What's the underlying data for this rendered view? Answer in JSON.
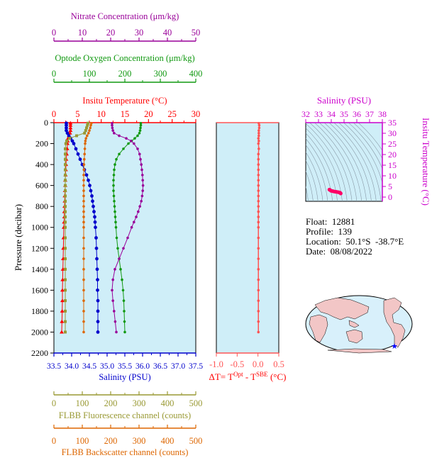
{
  "colors": {
    "nitrate": "#990099",
    "oxygen": "#119911",
    "temperature": "#ff0000",
    "salinity": "#0000cc",
    "fluorescence": "#999933",
    "backscatter": "#dd6600",
    "dt": "#ff5555",
    "ts_axis": "#cc00cc",
    "ts_points": "#ff0066",
    "panel_bg": "#cfeef8"
  },
  "info": {
    "float_label": "Float:",
    "float_value": "12881",
    "profile_label": "Profile:",
    "profile_value": "139",
    "location_label": "Location:",
    "location_value": "50.1°S  -38.7°E",
    "date_label": "Date:",
    "date_value": "08/08/2022"
  },
  "chart_data": [
    {
      "type": "line",
      "panel": "main-profile",
      "ylabel": "Pressure (decibar)",
      "ylim": [
        2200,
        0
      ],
      "yticks": [
        0,
        200,
        400,
        600,
        800,
        1000,
        1200,
        1400,
        1600,
        1800,
        2000,
        2200
      ],
      "pressure": [
        5,
        25,
        50,
        75,
        100,
        125,
        150,
        175,
        200,
        250,
        300,
        350,
        400,
        450,
        500,
        550,
        600,
        650,
        700,
        750,
        800,
        850,
        900,
        950,
        1000,
        1100,
        1200,
        1300,
        1400,
        1500,
        1600,
        1700,
        1800,
        1900,
        2000
      ],
      "axes": [
        {
          "name": "Nitrate Concentration (μm/kg)",
          "key": "nitrate",
          "xlim": [
            0,
            50
          ],
          "ticks": [
            "0",
            "10",
            "20",
            "30",
            "40",
            "50"
          ]
        },
        {
          "name": "Optode Oxygen Concentration (μm/kg)",
          "key": "oxygen",
          "xlim": [
            0,
            400
          ],
          "ticks": [
            "0",
            "100",
            "200",
            "300",
            "400"
          ]
        },
        {
          "name": "Insitu Temperature (°C)",
          "key": "temperature",
          "xlim": [
            0,
            30
          ],
          "ticks": [
            "0",
            "5",
            "10",
            "15",
            "20",
            "25",
            "30"
          ]
        },
        {
          "name": "Salinity (PSU)",
          "key": "salinity",
          "xlim": [
            33.5,
            37.5
          ],
          "ticks": [
            "33.5",
            "34.0",
            "34.5",
            "35.0",
            "35.5",
            "36.0",
            "36.5",
            "37.0",
            "37.5"
          ]
        },
        {
          "name": "FLBB Fluorescence channel (counts)",
          "key": "fluorescence",
          "xlim": [
            0,
            500
          ],
          "ticks": [
            "0",
            "100",
            "200",
            "300",
            "400",
            "500"
          ]
        },
        {
          "name": "FLBB Backscatter channel (counts)",
          "key": "backscatter",
          "xlim": [
            0,
            500
          ],
          "ticks": [
            "0",
            "100",
            "200",
            "300",
            "400",
            "500"
          ]
        }
      ],
      "series": [
        {
          "key": "temperature",
          "values": [
            3.5,
            3.5,
            3.5,
            3.5,
            3.4,
            3.2,
            3.0,
            2.9,
            2.85,
            2.8,
            2.7,
            2.6,
            2.55,
            2.5,
            2.45,
            2.4,
            2.4,
            2.35,
            2.3,
            2.3,
            2.25,
            2.2,
            2.2,
            2.15,
            2.1,
            2.05,
            2.0,
            1.95,
            1.9,
            1.85,
            1.8,
            1.8,
            1.75,
            1.7,
            1.65
          ]
        },
        {
          "key": "salinity",
          "values": [
            33.85,
            33.85,
            33.85,
            33.85,
            33.88,
            33.92,
            33.97,
            34.02,
            34.06,
            34.12,
            34.18,
            34.24,
            34.3,
            34.36,
            34.42,
            34.47,
            34.51,
            34.54,
            34.57,
            34.59,
            34.61,
            34.63,
            34.65,
            34.66,
            34.67,
            34.69,
            34.7,
            34.71,
            34.72,
            34.73,
            34.73,
            34.74,
            34.74,
            34.74,
            34.74
          ]
        },
        {
          "key": "oxygen",
          "values": [
            245,
            245,
            244,
            243,
            241,
            236,
            228,
            219,
            210,
            196,
            184,
            176,
            172,
            170,
            169,
            168,
            168,
            168,
            169,
            170,
            171,
            172,
            173,
            174,
            175,
            177,
            180,
            184,
            188,
            192,
            195,
            197,
            198,
            199,
            200
          ]
        },
        {
          "key": "nitrate",
          "values": [
            20.5,
            20.5,
            20.6,
            20.8,
            21.2,
            23.0,
            25.5,
            27.2,
            28.2,
            29.5,
            30.2,
            30.5,
            30.8,
            31.0,
            31.2,
            31.3,
            31.4,
            31.3,
            31.1,
            30.8,
            30.3,
            29.7,
            29.0,
            28.2,
            27.4,
            26.0,
            24.5,
            23.0,
            21.5,
            20.8,
            20.5,
            20.8,
            21.2,
            21.6,
            22.0
          ]
        },
        {
          "key": "fluorescence",
          "values": [
            120,
            118,
            115,
            112,
            108,
            80,
            55,
            45,
            42,
            40,
            40,
            40,
            40,
            40,
            40,
            40,
            40,
            40,
            40,
            40,
            40,
            40,
            40,
            40,
            40,
            40,
            40,
            40,
            40,
            40,
            40,
            40,
            40,
            40,
            40
          ]
        },
        {
          "key": "backscatter",
          "values": [
            132,
            130,
            128,
            125,
            122,
            117,
            113,
            111,
            110,
            109,
            108,
            107,
            106,
            106,
            105,
            105,
            105,
            105,
            105,
            105,
            105,
            105,
            105,
            105,
            105,
            105,
            105,
            105,
            105,
            105,
            105,
            105,
            105,
            105,
            105
          ]
        }
      ]
    },
    {
      "type": "line",
      "panel": "delta-t",
      "xlabel": "ΔT= T",
      "xlabel_sup1": "Opt",
      "xlabel_mid": " - T",
      "xlabel_sup2": "SBE",
      "xlabel_unit": " (°C)",
      "xlim": [
        -1.0,
        0.5
      ],
      "ticks": [
        "-1.0",
        "-0.5",
        "0.0",
        "0.5"
      ],
      "ylim": [
        2200,
        0
      ],
      "pressure": [
        5,
        25,
        50,
        75,
        100,
        125,
        150,
        175,
        200,
        250,
        300,
        350,
        400,
        450,
        500,
        550,
        600,
        650,
        700,
        750,
        800,
        850,
        900,
        950,
        1000,
        1100,
        1200,
        1300,
        1400,
        1500,
        1600,
        1700,
        1800,
        1900,
        2000
      ],
      "values": [
        0.02,
        0.03,
        0.03,
        0.02,
        0.02,
        0.02,
        0.01,
        0.02,
        0.01,
        0.02,
        0.01,
        0.01,
        0.01,
        0.01,
        0.01,
        0.01,
        0.01,
        0.01,
        0.01,
        0.01,
        0.01,
        0.01,
        0.01,
        0.01,
        0.01,
        0.01,
        0.01,
        0.01,
        0.01,
        0.01,
        0.01,
        0.01,
        0.01,
        0.01,
        0.01
      ]
    },
    {
      "type": "scatter",
      "panel": "ts-diagram",
      "xlabel": "Salinity (PSU)",
      "ylabel": "Insitu Temperature (°C)",
      "xlim": [
        32,
        38
      ],
      "ylim": [
        -2,
        35
      ],
      "xticks": [
        "32",
        "33",
        "34",
        "35",
        "36",
        "37",
        "38"
      ],
      "yticks": [
        "0",
        "5",
        "10",
        "15",
        "20",
        "25",
        "30",
        "35"
      ],
      "salinity": [
        33.85,
        33.9,
        33.97,
        34.06,
        34.12,
        34.2,
        34.3,
        34.4,
        34.5,
        34.58,
        34.65,
        34.7,
        34.74
      ],
      "temperature": [
        3.5,
        3.4,
        3.0,
        2.85,
        2.8,
        2.65,
        2.55,
        2.45,
        2.35,
        2.25,
        2.15,
        2.0,
        1.7
      ]
    }
  ]
}
